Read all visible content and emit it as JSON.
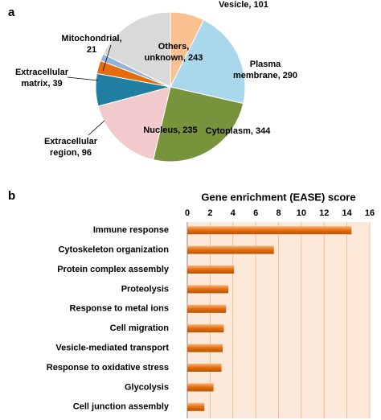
{
  "chart_data": [
    {
      "type": "pie",
      "panel_label": "a",
      "categories": [
        "Vesicle, 101",
        "Plasma membrane, 290",
        "Cytoplasm, 344",
        "Nucleus, 235",
        "Extracellular region, 96",
        "Extracellular matrix, 39",
        "Mitochondrial, 21",
        "Others, unknown, 243"
      ],
      "values": [
        101,
        290,
        344,
        235,
        96,
        39,
        21,
        243
      ],
      "colors": [
        "#fac090",
        "#a9d8ec",
        "#77933c",
        "#f2c9cc",
        "#1f7ea1",
        "#e46c0a",
        "#95b3d7",
        "#d9d9d9"
      ]
    },
    {
      "type": "hbar",
      "panel_label": "b",
      "title": "Gene enrichment (EASE) score",
      "categories": [
        "Immune response",
        "Cytoskeleton organization",
        "Protein complex assembly",
        "Proteolysis",
        "Response to metal ions",
        "Cell migration",
        "Vesicle-mediated transport",
        "Response to oxidative stress",
        "Glycolysis",
        "Cell junction assembly"
      ],
      "values": [
        14.4,
        7.6,
        4.1,
        3.6,
        3.4,
        3.2,
        3.1,
        3.0,
        2.3,
        1.5
      ],
      "color": "#e46c0a",
      "background": "#fde9d9",
      "xlim": [
        0,
        16
      ],
      "xticks": [
        0,
        2,
        4,
        6,
        8,
        10,
        12,
        14,
        16
      ],
      "grid": true
    }
  ]
}
